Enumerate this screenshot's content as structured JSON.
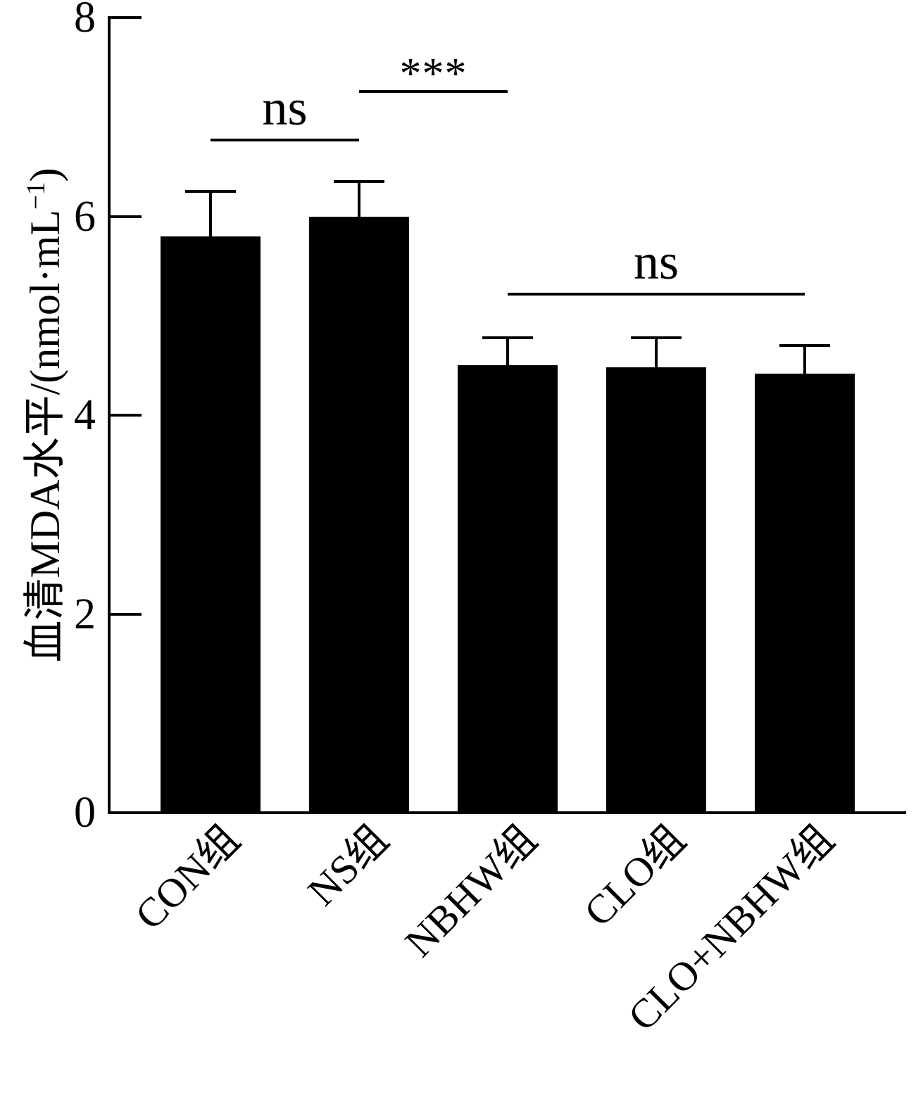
{
  "figure": {
    "background": "#ffffff",
    "ink_color": "#000000"
  },
  "chart_data": {
    "type": "bar",
    "title": "",
    "xlabel": "",
    "ylabel": "血清MDA水平/(nmol·mL⁻¹)",
    "ylabel_parts": {
      "prefix": "血清MDA水平/(nmol·mL",
      "superscript": "−1",
      "suffix": ")"
    },
    "categories": [
      "CON组",
      "NS组",
      "NBHW组",
      "CLO组",
      "CLO+NBHW组"
    ],
    "values": [
      5.8,
      6.0,
      4.5,
      4.48,
      4.42
    ],
    "error_plus": [
      0.45,
      0.35,
      0.28,
      0.3,
      0.28
    ],
    "ylim": [
      0,
      8
    ],
    "yticks": [
      8,
      6,
      4,
      2,
      0
    ],
    "bar_color": "#000000",
    "grid": false,
    "legend": false,
    "annotations": [
      {
        "label": "ns",
        "from": 0,
        "to": 1,
        "from_category": "CON组",
        "to_category": "NS组",
        "line_y": 6.77
      },
      {
        "label": "***",
        "from": 1,
        "to": 2,
        "from_category": "NS组",
        "to_category": "NBHW组",
        "line_y": 7.26
      },
      {
        "label": "ns",
        "from": 2,
        "to": 4,
        "from_category": "NBHW组",
        "to_category": "CLO+NBHW组",
        "line_y": 5.22
      }
    ]
  }
}
